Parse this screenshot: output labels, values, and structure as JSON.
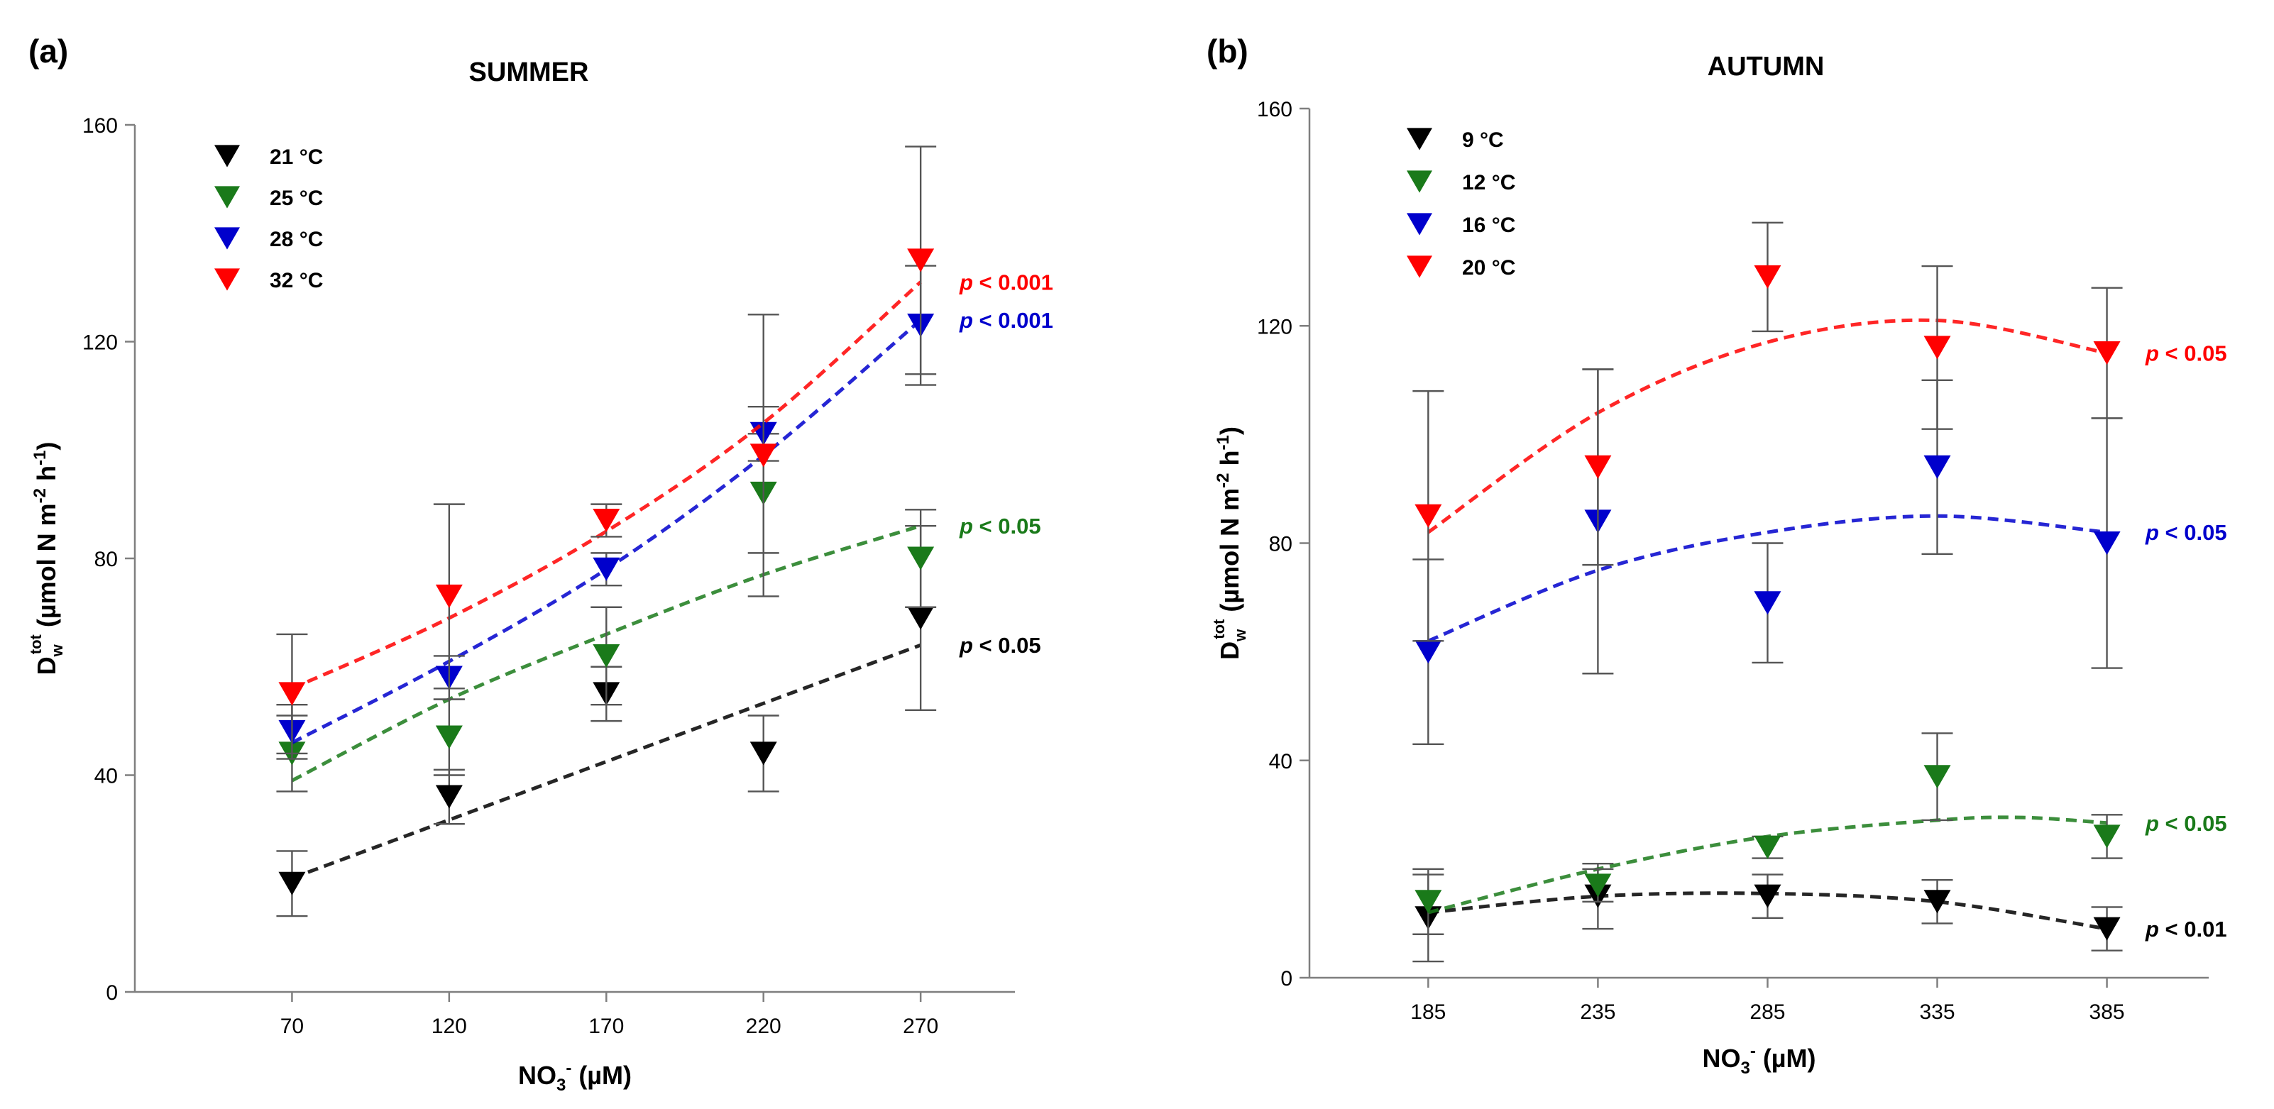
{
  "chart_data": [
    {
      "panel": "(a)",
      "type": "scatter",
      "title": "SUMMER",
      "xlabel": "NO3- (µM)",
      "ylabel": "Dw tot (µmol N m-2 h-1)",
      "x": [
        70,
        120,
        170,
        220,
        270
      ],
      "xlim": [
        20,
        300
      ],
      "ylim": [
        0,
        160
      ],
      "yticks": [
        0,
        40,
        80,
        120,
        160
      ],
      "legend_position": "top-left",
      "series": [
        {
          "name": "21 °C",
          "color": "#000000",
          "values": [
            20,
            36,
            55,
            44,
            69
          ],
          "err": [
            6,
            5,
            5,
            7,
            17
          ],
          "fit": [
            [
              70,
              21
            ],
            [
              270,
              64
            ]
          ],
          "p_label": "p < 0.05"
        },
        {
          "name": "25 °C",
          "color": "#1a7a1a",
          "values": [
            44,
            47,
            62,
            92,
            80
          ],
          "err": [
            7,
            7,
            9,
            11,
            9
          ],
          "fit": [
            [
              70,
              39
            ],
            [
              120,
              54
            ],
            [
              170,
              66
            ],
            [
              220,
              77
            ],
            [
              270,
              86
            ]
          ],
          "p_label": "p < 0.05"
        },
        {
          "name": "28 °C",
          "color": "#0000cc",
          "values": [
            48,
            58,
            78,
            103,
            123
          ],
          "err": [
            5,
            4,
            3,
            5,
            11
          ],
          "fit": [
            [
              70,
              46
            ],
            [
              120,
              61
            ],
            [
              170,
              78
            ],
            [
              220,
              99
            ],
            [
              270,
              124
            ]
          ],
          "p_label": "p < 0.001"
        },
        {
          "name": "32 °C",
          "color": "#ff0000",
          "values": [
            55,
            73,
            87,
            99,
            135
          ],
          "err": [
            11,
            17,
            3,
            26,
            21
          ],
          "fit": [
            [
              70,
              56
            ],
            [
              120,
              69
            ],
            [
              170,
              85
            ],
            [
              220,
              105
            ],
            [
              270,
              131
            ]
          ],
          "p_label": "p < 0.001"
        }
      ]
    },
    {
      "panel": "(b)",
      "type": "scatter",
      "title": "AUTUMN",
      "xlabel": "NO3- (µM)",
      "ylabel": "Dw tot (µmol N m-2 h-1)",
      "x": [
        185,
        235,
        285,
        335,
        385
      ],
      "xlim": [
        150,
        415
      ],
      "ylim": [
        0,
        160
      ],
      "yticks": [
        0,
        40,
        80,
        120,
        160
      ],
      "legend_position": "top-left",
      "series": [
        {
          "name": "9 °C",
          "color": "#000000",
          "values": [
            11,
            15,
            15,
            14,
            9
          ],
          "err": [
            8,
            6,
            4,
            4,
            4
          ],
          "fit": [
            [
              185,
              12
            ],
            [
              235,
              15
            ],
            [
              285,
              15.5
            ],
            [
              335,
              14
            ],
            [
              385,
              9
            ]
          ],
          "p_label": "p < 0.01"
        },
        {
          "name": "12 °C",
          "color": "#1a7a1a",
          "values": [
            14,
            17,
            24,
            37,
            26
          ],
          "err": [
            6,
            3,
            2,
            8,
            4
          ],
          "fit": [
            [
              185,
              12
            ],
            [
              235,
              20
            ],
            [
              285,
              26
            ],
            [
              335,
              29
            ],
            [
              360,
              29.5
            ],
            [
              385,
              28.5
            ]
          ],
          "p_label": "p < 0.05"
        },
        {
          "name": "16 °C",
          "color": "#0000cc",
          "values": [
            60,
            84,
            69,
            94,
            80
          ],
          "err": [
            17,
            28,
            11,
            16,
            23
          ],
          "fit": [
            [
              185,
              62
            ],
            [
              235,
              75
            ],
            [
              285,
              82
            ],
            [
              335,
              85
            ],
            [
              385,
              82
            ]
          ],
          "p_label": "p < 0.05"
        },
        {
          "name": "20 °C",
          "color": "#ff0000",
          "values": [
            85,
            94,
            129,
            116,
            115
          ],
          "err": [
            23,
            18,
            10,
            15,
            12
          ],
          "fit": [
            [
              185,
              82
            ],
            [
              235,
              104
            ],
            [
              285,
              117
            ],
            [
              335,
              121
            ],
            [
              385,
              115
            ]
          ],
          "p_label": "p < 0.05"
        }
      ]
    }
  ]
}
